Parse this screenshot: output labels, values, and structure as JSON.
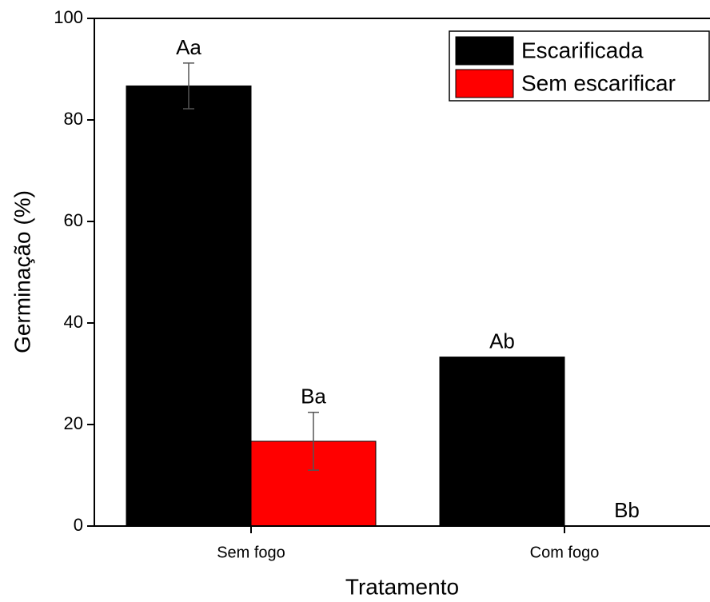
{
  "chart_data": {
    "type": "bar",
    "x_label": "Tratamento",
    "y_label": "Germinação (%)",
    "categories": [
      "Sem fogo",
      "Com fogo"
    ],
    "series": [
      {
        "name": "Escarificada",
        "color": "#000000",
        "values": [
          86.7,
          33.3
        ],
        "errors": [
          4.5,
          null
        ],
        "letters": [
          "Aa",
          "Ab"
        ]
      },
      {
        "name": "Sem escarificar",
        "color": "#ff0000",
        "values": [
          16.7,
          0
        ],
        "errors": [
          5.7,
          null
        ],
        "letters": [
          "Ba",
          "Bb"
        ]
      }
    ],
    "ylim": [
      0,
      100
    ],
    "yticks": [
      0,
      20,
      40,
      60,
      80,
      100
    ],
    "legend": "upper right"
  }
}
